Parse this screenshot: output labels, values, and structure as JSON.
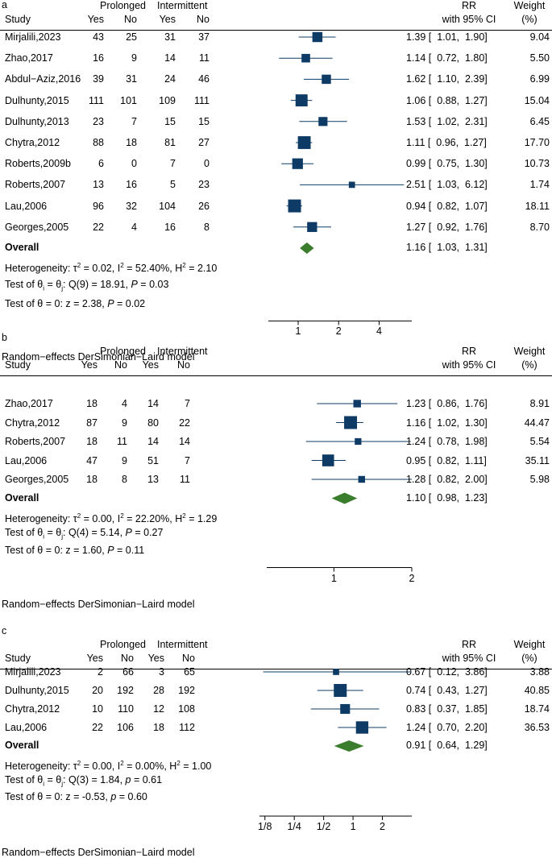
{
  "colors": {
    "marker": "#0d3b66",
    "diamond": "#3a7d2c",
    "text": "#000000"
  },
  "headers": {
    "study": "Study",
    "prolonged": "Prolonged",
    "intermittent": "Intermittent",
    "yes": "Yes",
    "no": "No",
    "rr": "RR",
    "ci": "with 95% CI",
    "weight": "Weight",
    "weight_unit": "(%)"
  },
  "overall_label": "Overall",
  "model_note": "Random−effects DerSimonian−Laird model",
  "chart_data": [
    {
      "type": "forest",
      "panel_label": "a",
      "xscale": "log",
      "xlim": [
        0.6,
        7.0
      ],
      "xticks": [
        1,
        2,
        4
      ],
      "xtick_labels": [
        "1",
        "2",
        "4"
      ],
      "studies": [
        {
          "study": "Mirjalili,2023",
          "p_yes": 43,
          "p_no": 25,
          "i_yes": 31,
          "i_no": 37,
          "rr": 1.39,
          "lo": 1.01,
          "hi": 1.9,
          "rr_text": "1.39 [  1.01,  1.90]",
          "weight": 9.04,
          "weight_text": "9.04"
        },
        {
          "study": "Zhao,2017",
          "p_yes": 16,
          "p_no": 9,
          "i_yes": 14,
          "i_no": 11,
          "rr": 1.14,
          "lo": 0.72,
          "hi": 1.8,
          "rr_text": "1.14 [  0.72,  1.80]",
          "weight": 5.5,
          "weight_text": "5.50"
        },
        {
          "study": "Abdul−Aziz,2016",
          "p_yes": 39,
          "p_no": 31,
          "i_yes": 24,
          "i_no": 46,
          "rr": 1.62,
          "lo": 1.1,
          "hi": 2.39,
          "rr_text": "1.62 [  1.10,  2.39]",
          "weight": 6.99,
          "weight_text": "6.99"
        },
        {
          "study": "Dulhunty,2015",
          "p_yes": 111,
          "p_no": 101,
          "i_yes": 109,
          "i_no": 111,
          "rr": 1.06,
          "lo": 0.88,
          "hi": 1.27,
          "rr_text": "1.06 [  0.88,  1.27]",
          "weight": 15.04,
          "weight_text": "15.04"
        },
        {
          "study": "Dulhunty,2013",
          "p_yes": 23,
          "p_no": 7,
          "i_yes": 15,
          "i_no": 15,
          "rr": 1.53,
          "lo": 1.02,
          "hi": 2.31,
          "rr_text": "1.53 [  1.02,  2.31]",
          "weight": 6.45,
          "weight_text": "6.45"
        },
        {
          "study": "Chytra,2012",
          "p_yes": 88,
          "p_no": 18,
          "i_yes": 81,
          "i_no": 27,
          "rr": 1.11,
          "lo": 0.96,
          "hi": 1.27,
          "rr_text": "1.11 [  0.96,  1.27]",
          "weight": 17.7,
          "weight_text": "17.70"
        },
        {
          "study": "Roberts,2009b",
          "p_yes": 6,
          "p_no": 0,
          "i_yes": 7,
          "i_no": 0,
          "rr": 0.99,
          "lo": 0.75,
          "hi": 1.3,
          "rr_text": "0.99 [  0.75,  1.30]",
          "weight": 10.73,
          "weight_text": "10.73"
        },
        {
          "study": "Roberts,2007",
          "p_yes": 13,
          "p_no": 16,
          "i_yes": 5,
          "i_no": 23,
          "rr": 2.51,
          "lo": 1.03,
          "hi": 6.12,
          "rr_text": "2.51 [  1.03,  6.12]",
          "weight": 1.74,
          "weight_text": "1.74"
        },
        {
          "study": "Lau,2006",
          "p_yes": 96,
          "p_no": 32,
          "i_yes": 104,
          "i_no": 26,
          "rr": 0.94,
          "lo": 0.82,
          "hi": 1.07,
          "rr_text": "0.94 [  0.82,  1.07]",
          "weight": 18.11,
          "weight_text": "18.11"
        },
        {
          "study": "Georges,2005",
          "p_yes": 22,
          "p_no": 4,
          "i_yes": 16,
          "i_no": 8,
          "rr": 1.27,
          "lo": 0.92,
          "hi": 1.76,
          "rr_text": "1.27 [  0.92,  1.76]",
          "weight": 8.7,
          "weight_text": "8.70"
        }
      ],
      "overall": {
        "rr": 1.16,
        "lo": 1.03,
        "hi": 1.31,
        "rr_text": "1.16 [  1.03,  1.31]"
      },
      "heterogeneity": {
        "tau2": "0.02",
        "i2": "52.40%",
        "h2": "2.10"
      },
      "test_theta_i": {
        "df": "9",
        "q": "18.91",
        "p": "0.03",
        "p_symbol": "P"
      },
      "test_theta0": {
        "z": "2.38",
        "p": "0.02",
        "p_symbol": "P"
      }
    },
    {
      "type": "forest",
      "panel_label": "b",
      "xscale": "log",
      "xlim": [
        0.55,
        2.0
      ],
      "xticks": [
        1,
        2
      ],
      "xtick_labels": [
        "1",
        "2"
      ],
      "studies": [
        {
          "study": "Zhao,2017",
          "p_yes": 18,
          "p_no": 4,
          "i_yes": 14,
          "i_no": 7,
          "rr": 1.23,
          "lo": 0.86,
          "hi": 1.76,
          "rr_text": "1.23 [  0.86,  1.76]",
          "weight": 8.91,
          "weight_text": "8.91"
        },
        {
          "study": "Chytra,2012",
          "p_yes": 87,
          "p_no": 9,
          "i_yes": 80,
          "i_no": 22,
          "rr": 1.16,
          "lo": 1.02,
          "hi": 1.3,
          "rr_text": "1.16 [  1.02,  1.30]",
          "weight": 44.47,
          "weight_text": "44.47"
        },
        {
          "study": "Roberts,2007",
          "p_yes": 18,
          "p_no": 11,
          "i_yes": 14,
          "i_no": 14,
          "rr": 1.24,
          "lo": 0.78,
          "hi": 1.98,
          "rr_text": "1.24 [  0.78,  1.98]",
          "weight": 5.54,
          "weight_text": "5.54"
        },
        {
          "study": "Lau,2006",
          "p_yes": 47,
          "p_no": 9,
          "i_yes": 51,
          "i_no": 7,
          "rr": 0.95,
          "lo": 0.82,
          "hi": 1.11,
          "rr_text": "0.95 [  0.82,  1.11]",
          "weight": 35.11,
          "weight_text": "35.11"
        },
        {
          "study": "Georges,2005",
          "p_yes": 18,
          "p_no": 8,
          "i_yes": 13,
          "i_no": 11,
          "rr": 1.28,
          "lo": 0.82,
          "hi": 2.0,
          "rr_text": "1.28 [  0.82,  2.00]",
          "weight": 5.98,
          "weight_text": "5.98"
        }
      ],
      "overall": {
        "rr": 1.1,
        "lo": 0.98,
        "hi": 1.23,
        "rr_text": "1.10 [  0.98,  1.23]"
      },
      "heterogeneity": {
        "tau2": "0.00",
        "i2": "22.20%",
        "h2": "1.29"
      },
      "test_theta_i": {
        "df": "4",
        "q": "5.14",
        "p": "0.27",
        "p_symbol": "P"
      },
      "test_theta0": {
        "z": "1.60",
        "p": "0.11",
        "p_symbol": "P"
      }
    },
    {
      "type": "forest",
      "panel_label": "c",
      "xscale": "log",
      "xlim": [
        0.11,
        4.0
      ],
      "xticks": [
        0.125,
        0.25,
        0.5,
        1,
        2
      ],
      "xtick_labels": [
        "1/8",
        "1/4",
        "1/2",
        "1",
        "2"
      ],
      "studies": [
        {
          "study": "Mirjalili,2023",
          "p_yes": 2,
          "p_no": 66,
          "i_yes": 3,
          "i_no": 65,
          "rr": 0.67,
          "lo": 0.12,
          "hi": 3.86,
          "rr_text": "0.67 [  0.12,  3.86]",
          "weight": 3.88,
          "weight_text": "3.88"
        },
        {
          "study": "Dulhunty,2015",
          "p_yes": 20,
          "p_no": 192,
          "i_yes": 28,
          "i_no": 192,
          "rr": 0.74,
          "lo": 0.43,
          "hi": 1.27,
          "rr_text": "0.74 [  0.43,  1.27]",
          "weight": 40.85,
          "weight_text": "40.85"
        },
        {
          "study": "Chytra,2012",
          "p_yes": 10,
          "p_no": 110,
          "i_yes": 12,
          "i_no": 108,
          "rr": 0.83,
          "lo": 0.37,
          "hi": 1.85,
          "rr_text": "0.83 [  0.37,  1.85]",
          "weight": 18.74,
          "weight_text": "18.74"
        },
        {
          "study": "Lau,2006",
          "p_yes": 22,
          "p_no": 106,
          "i_yes": 18,
          "i_no": 112,
          "rr": 1.24,
          "lo": 0.7,
          "hi": 2.2,
          "rr_text": "1.24 [  0.70,  2.20]",
          "weight": 36.53,
          "weight_text": "36.53"
        }
      ],
      "overall": {
        "rr": 0.91,
        "lo": 0.64,
        "hi": 1.29,
        "rr_text": "0.91 [  0.64,  1.29]"
      },
      "heterogeneity": {
        "tau2": "0.00",
        "i2": "0.00%",
        "h2": "1.00"
      },
      "test_theta_i": {
        "df": "3",
        "q": "1.84",
        "p": "0.61",
        "p_symbol": "p"
      },
      "test_theta0": {
        "z": "-0.53",
        "p": "0.60",
        "p_symbol": "p"
      }
    }
  ]
}
